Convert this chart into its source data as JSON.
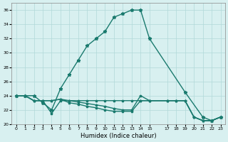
{
  "xlabel": "Humidex (Indice chaleur)",
  "bg_color": "#d8f0f0",
  "grid_color": "#b0d8d8",
  "line_color": "#1a7a6e",
  "xlim": [
    -0.5,
    23.5
  ],
  "ylim": [
    20,
    37
  ],
  "yticks": [
    20,
    22,
    24,
    26,
    28,
    30,
    32,
    34,
    36
  ],
  "xticks": [
    0,
    1,
    2,
    3,
    4,
    5,
    6,
    7,
    8,
    9,
    10,
    11,
    12,
    13,
    14,
    15,
    17,
    18,
    19,
    20,
    21,
    22,
    23
  ],
  "xtick_labels": [
    "0",
    "1",
    "2",
    "3",
    "4",
    "5",
    "6",
    "7",
    "8",
    "9",
    "10",
    "11",
    "12",
    "13",
    "14",
    "15",
    "17",
    "18",
    "19",
    "20",
    "21",
    "22",
    "23"
  ],
  "line1_x": [
    0,
    1,
    2,
    3,
    4,
    5,
    6,
    7,
    8,
    9,
    10,
    11,
    12,
    13,
    14,
    15,
    19,
    21,
    22,
    23
  ],
  "line1_y": [
    24,
    24,
    24,
    23,
    22,
    25,
    27,
    29,
    31,
    32,
    33,
    35,
    35.5,
    36,
    36,
    32,
    24.5,
    21,
    20.5,
    21
  ],
  "line2_x": [
    0,
    1,
    2,
    3,
    4,
    5,
    6,
    7,
    8,
    9,
    10,
    11,
    12,
    13,
    14,
    15,
    17,
    18,
    19,
    20,
    21,
    22,
    23
  ],
  "line2_y": [
    24,
    24,
    23.3,
    23.3,
    21.5,
    23.3,
    23.3,
    23.3,
    23.3,
    23.3,
    23.3,
    23.3,
    23.3,
    23.3,
    23.3,
    23.3,
    23.3,
    23.3,
    23.3,
    21,
    20.5,
    20.5,
    21
  ],
  "line3_x": [
    0,
    1,
    2,
    3,
    4,
    5,
    6,
    7,
    8,
    9,
    10,
    11,
    12,
    13,
    14,
    15,
    17,
    18,
    19,
    20,
    21,
    22,
    23
  ],
  "line3_y": [
    24,
    24,
    23.3,
    23.3,
    23.3,
    23.5,
    23.0,
    22.8,
    22.5,
    22.3,
    22.0,
    21.8,
    21.8,
    21.8,
    23.3,
    23.3,
    23.3,
    23.3,
    23.3,
    21,
    20.5,
    20.5,
    21
  ],
  "line4_x": [
    0,
    1,
    2,
    3,
    4,
    5,
    6,
    7,
    8,
    9,
    10,
    11,
    12,
    13,
    14,
    15,
    17,
    18,
    19,
    20,
    21,
    22,
    23
  ],
  "line4_y": [
    24,
    24,
    23.3,
    23.3,
    23.3,
    23.5,
    23.3,
    23.1,
    22.9,
    22.7,
    22.5,
    22.2,
    22.0,
    22.0,
    24.0,
    23.3,
    23.3,
    23.3,
    23.3,
    21,
    20.5,
    20.5,
    21
  ]
}
